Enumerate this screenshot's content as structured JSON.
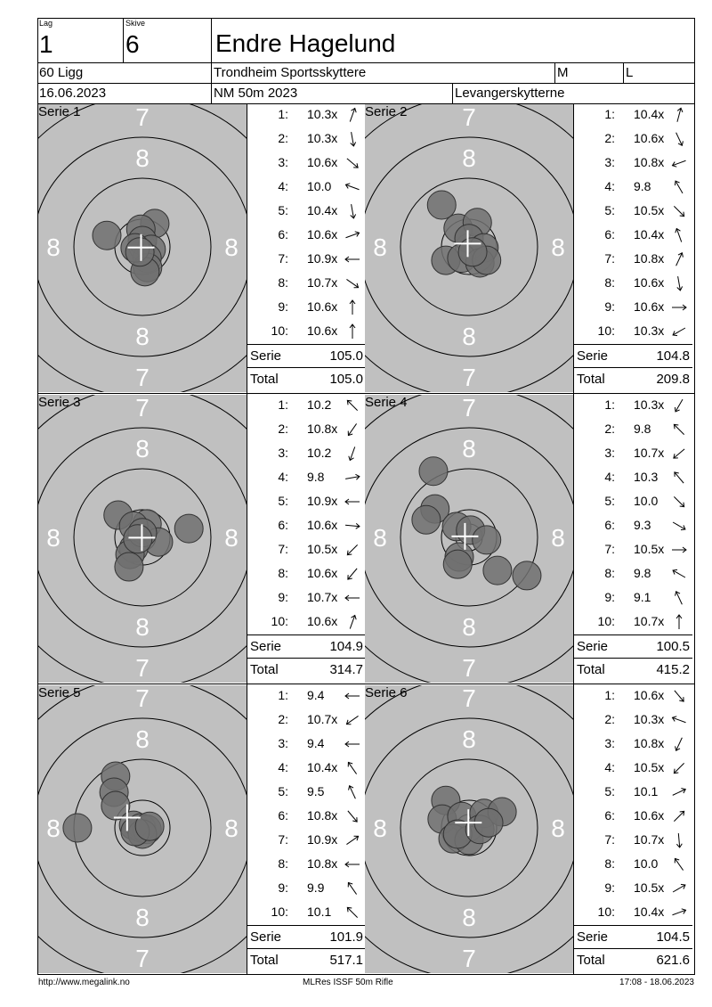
{
  "header": {
    "lag_label": "Lag",
    "lag_value": "1",
    "skive_label": "Skive",
    "skive_value": "6",
    "shooter_name": "Endre Hagelund",
    "class": "60 Ligg",
    "club": "Trondheim Sportsskyttere",
    "col_m": "M",
    "col_l": "L",
    "date": "16.06.2023",
    "event": "NM 50m 2023",
    "organizer": "Levangerskytterne"
  },
  "target": {
    "background": "#c0c0c0",
    "shot_color": "#707070",
    "ring_labels": {
      "eight": "8",
      "seven": "7"
    }
  },
  "labels": {
    "serie": "Serie",
    "total": "Total"
  },
  "series": [
    {
      "title": "Serie 1",
      "serie_sum": "105.0",
      "total": "105.0",
      "shots": [
        {
          "n": "1:",
          "score": "10.3x",
          "dir": 20
        },
        {
          "n": "2:",
          "score": "10.3x",
          "dir": 170
        },
        {
          "n": "3:",
          "score": "10.6x",
          "dir": 130
        },
        {
          "n": "4:",
          "score": "10.0",
          "dir": 290
        },
        {
          "n": "5:",
          "score": "10.4x",
          "dir": 170
        },
        {
          "n": "6:",
          "score": "10.6x",
          "dir": 70
        },
        {
          "n": "7:",
          "score": "10.9x",
          "dir": 270
        },
        {
          "n": "8:",
          "score": "10.7x",
          "dir": 125
        },
        {
          "n": "9:",
          "score": "10.6x",
          "dir": 0
        },
        {
          "n": "10:",
          "score": "10.6x",
          "dir": 0
        }
      ],
      "impacts_mm": [
        [
          -6.9,
          2.2
        ],
        [
          2.4,
          4.5
        ],
        [
          -0.3,
          3.4
        ],
        [
          0,
          1.2
        ],
        [
          1.7,
          -0.5
        ],
        [
          0.9,
          -2.2
        ],
        [
          1.0,
          -4.0
        ],
        [
          0.5,
          -4.8
        ],
        [
          -1.4,
          -0.2
        ],
        [
          -0.5,
          -1.0
        ]
      ]
    },
    {
      "title": "Serie 2",
      "serie_sum": "104.8",
      "total": "209.8",
      "shots": [
        {
          "n": "1:",
          "score": "10.4x",
          "dir": 15
        },
        {
          "n": "2:",
          "score": "10.6x",
          "dir": 155
        },
        {
          "n": "3:",
          "score": "10.8x",
          "dir": 250
        },
        {
          "n": "4:",
          "score": "9.8",
          "dir": 330
        },
        {
          "n": "5:",
          "score": "10.5x",
          "dir": 135
        },
        {
          "n": "6:",
          "score": "10.4x",
          "dir": 340
        },
        {
          "n": "7:",
          "score": "10.8x",
          "dir": 25
        },
        {
          "n": "8:",
          "score": "10.6x",
          "dir": 170
        },
        {
          "n": "9:",
          "score": "10.6x",
          "dir": 90
        },
        {
          "n": "10:",
          "score": "10.3x",
          "dir": 240
        }
      ],
      "impacts_mm": [
        [
          -5.3,
          8.1
        ],
        [
          -2.1,
          3.6
        ],
        [
          1.6,
          4.7
        ],
        [
          0,
          1.6
        ],
        [
          2.9,
          -0.2
        ],
        [
          -4.5,
          -2.6
        ],
        [
          -1.4,
          -2.2
        ],
        [
          2.1,
          -3.1
        ],
        [
          3.4,
          -2.6
        ],
        [
          0.7,
          -1.0
        ]
      ]
    },
    {
      "title": "Serie 3",
      "serie_sum": "104.9",
      "total": "314.7",
      "shots": [
        {
          "n": "1:",
          "score": "10.2",
          "dir": 315
        },
        {
          "n": "2:",
          "score": "10.8x",
          "dir": 215
        },
        {
          "n": "3:",
          "score": "10.2",
          "dir": 200
        },
        {
          "n": "4:",
          "score": "9.8",
          "dir": 80
        },
        {
          "n": "5:",
          "score": "10.9x",
          "dir": 270
        },
        {
          "n": "6:",
          "score": "10.6x",
          "dir": 95
        },
        {
          "n": "7:",
          "score": "10.5x",
          "dir": 225
        },
        {
          "n": "8:",
          "score": "10.6x",
          "dir": 220
        },
        {
          "n": "9:",
          "score": "10.7x",
          "dir": 270
        },
        {
          "n": "10:",
          "score": "10.6x",
          "dir": 20
        }
      ],
      "impacts_mm": [
        [
          -4.7,
          4.3
        ],
        [
          0.9,
          2.6
        ],
        [
          -1.7,
          2.2
        ],
        [
          9.0,
          1.7
        ],
        [
          3.1,
          -0.9
        ],
        [
          -1.7,
          -2.1
        ],
        [
          -2.4,
          -3.3
        ],
        [
          -2.6,
          -5.7
        ],
        [
          0,
          0.9
        ],
        [
          -0.9,
          -0.3
        ]
      ]
    },
    {
      "title": "Serie 4",
      "serie_sum": "100.5",
      "total": "415.2",
      "shots": [
        {
          "n": "1:",
          "score": "10.3x",
          "dir": 210
        },
        {
          "n": "2:",
          "score": "9.8",
          "dir": 315
        },
        {
          "n": "3:",
          "score": "10.7x",
          "dir": 230
        },
        {
          "n": "4:",
          "score": "10.3",
          "dir": 320
        },
        {
          "n": "5:",
          "score": "10.0",
          "dir": 135
        },
        {
          "n": "6:",
          "score": "9.3",
          "dir": 120
        },
        {
          "n": "7:",
          "score": "10.5x",
          "dir": 90
        },
        {
          "n": "8:",
          "score": "9.8",
          "dir": 300
        },
        {
          "n": "9:",
          "score": "9.1",
          "dir": 335
        },
        {
          "n": "10:",
          "score": "10.7x",
          "dir": 0
        }
      ],
      "impacts_mm": [
        [
          -6.9,
          12.8
        ],
        [
          -6.6,
          5.5
        ],
        [
          -8.3,
          3.4
        ],
        [
          -2.4,
          2.1
        ],
        [
          0.3,
          1.4
        ],
        [
          3.4,
          -0.5
        ],
        [
          -1.9,
          -3.8
        ],
        [
          -2.2,
          -5.2
        ],
        [
          5.5,
          -6.4
        ],
        [
          11.2,
          -7.4
        ]
      ]
    },
    {
      "title": "Serie 5",
      "serie_sum": "101.9",
      "total": "517.1",
      "shots": [
        {
          "n": "1:",
          "score": "9.4",
          "dir": 270
        },
        {
          "n": "2:",
          "score": "10.7x",
          "dir": 235
        },
        {
          "n": "3:",
          "score": "9.4",
          "dir": 270
        },
        {
          "n": "4:",
          "score": "10.4x",
          "dir": 325
        },
        {
          "n": "5:",
          "score": "9.5",
          "dir": 335
        },
        {
          "n": "6:",
          "score": "10.8x",
          "dir": 140
        },
        {
          "n": "7:",
          "score": "10.9x",
          "dir": 55
        },
        {
          "n": "8:",
          "score": "10.8x",
          "dir": 270
        },
        {
          "n": "9:",
          "score": "9.9",
          "dir": 325
        },
        {
          "n": "10:",
          "score": "10.1",
          "dir": 315
        }
      ],
      "impacts_mm": [
        [
          -5.2,
          10.0
        ],
        [
          -5.5,
          6.9
        ],
        [
          -5.2,
          4.3
        ],
        [
          -12.6,
          0
        ],
        [
          -1.7,
          0.5
        ],
        [
          -0.3,
          0
        ],
        [
          0.9,
          -0.3
        ],
        [
          0,
          -1.2
        ],
        [
          -1.4,
          -0.7
        ],
        [
          1.4,
          0.3
        ]
      ]
    },
    {
      "title": "Serie 6",
      "serie_sum": "104.5",
      "total": "621.6",
      "shots": [
        {
          "n": "1:",
          "score": "10.6x",
          "dir": 140
        },
        {
          "n": "2:",
          "score": "10.3x",
          "dir": 290
        },
        {
          "n": "3:",
          "score": "10.8x",
          "dir": 205
        },
        {
          "n": "4:",
          "score": "10.5x",
          "dir": 225
        },
        {
          "n": "5:",
          "score": "10.1",
          "dir": 65
        },
        {
          "n": "6:",
          "score": "10.6x",
          "dir": 45
        },
        {
          "n": "7:",
          "score": "10.7x",
          "dir": 175
        },
        {
          "n": "8:",
          "score": "10.0",
          "dir": 325
        },
        {
          "n": "9:",
          "score": "10.5x",
          "dir": 60
        },
        {
          "n": "10:",
          "score": "10.4x",
          "dir": 70
        }
      ],
      "impacts_mm": [
        [
          -4.5,
          5.3
        ],
        [
          -5.2,
          1.7
        ],
        [
          -1.4,
          2.2
        ],
        [
          2.9,
          2.8
        ],
        [
          6.4,
          3.1
        ],
        [
          -3.1,
          -2.1
        ],
        [
          0,
          -2.4
        ],
        [
          -2.2,
          -1.2
        ],
        [
          2.1,
          -0.3
        ],
        [
          3.8,
          1.0
        ]
      ]
    }
  ],
  "footer": {
    "website": "http://www.megalink.no",
    "software": "MLRes ISSF 50m Rifle",
    "printed": "17:08 - 18.06.2023"
  }
}
